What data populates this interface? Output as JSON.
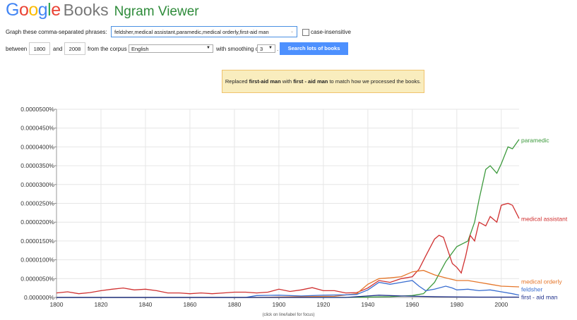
{
  "header": {
    "logo_letters": [
      {
        "ch": "G",
        "color": "#4285f4"
      },
      {
        "ch": "o",
        "color": "#ea4335"
      },
      {
        "ch": "o",
        "color": "#fbbc05"
      },
      {
        "ch": "g",
        "color": "#4285f4"
      },
      {
        "ch": "l",
        "color": "#34a853"
      },
      {
        "ch": "e",
        "color": "#ea4335"
      }
    ],
    "books": "Books",
    "title": "Ngram Viewer"
  },
  "query": {
    "label": "Graph these comma-separated phrases:",
    "phrases": "feldsher,medical assistant,paramedic,medical orderly,first-aid man",
    "case_insensitive_label": "case-insensitive",
    "between_label": "between",
    "start_year": "1800",
    "and_label": "and",
    "end_year": "2008",
    "corpus_label": "from the corpus",
    "corpus": "English",
    "smoothing_label": "with smoothing of",
    "smoothing": "3",
    "period": ".",
    "search_button": "Search lots of books"
  },
  "notice": {
    "prefix": "Replaced ",
    "original": "first-aid man",
    "middle": " with ",
    "replacement": "first - aid man",
    "suffix": " to match how we processed the books."
  },
  "footer": "(click on line/label for focus)",
  "chart_data": {
    "type": "line",
    "xlim": [
      1800,
      2008
    ],
    "ylim": [
      0,
      5e-07
    ],
    "x_ticks": [
      "1800",
      "1820",
      "1840",
      "1860",
      "1880",
      "1900",
      "1920",
      "1940",
      "1960",
      "1980",
      "2000"
    ],
    "y_ticks": [
      "0.000000%",
      "0.0000050%",
      "0.0000100%",
      "0.0000150%",
      "0.0000200%",
      "0.0000250%",
      "0.0000300%",
      "0.0000350%",
      "0.0000400%",
      "0.0000450%",
      "0.0000500%"
    ],
    "grid": true,
    "series": [
      {
        "name": "paramedic",
        "color": "#3d9a3d",
        "label_y": 4.18e-07,
        "points": [
          [
            1800,
            0
          ],
          [
            1930,
            0
          ],
          [
            1950,
            2e-09
          ],
          [
            1960,
            5e-09
          ],
          [
            1965,
            1e-08
          ],
          [
            1970,
            4e-08
          ],
          [
            1975,
            9.5e-08
          ],
          [
            1980,
            1.35e-07
          ],
          [
            1985,
            1.5e-07
          ],
          [
            1988,
            2e-07
          ],
          [
            1990,
            2.6e-07
          ],
          [
            1993,
            3.4e-07
          ],
          [
            1995,
            3.5e-07
          ],
          [
            1998,
            3.3e-07
          ],
          [
            2000,
            3.55e-07
          ],
          [
            2003,
            4e-07
          ],
          [
            2005,
            3.95e-07
          ],
          [
            2008,
            4.2e-07
          ]
        ]
      },
      {
        "name": "medical assistant",
        "color": "#d03030",
        "label_y": 2.09e-07,
        "points": [
          [
            1800,
            1.2e-08
          ],
          [
            1805,
            1.5e-08
          ],
          [
            1810,
            1e-08
          ],
          [
            1815,
            1.3e-08
          ],
          [
            1820,
            1.8e-08
          ],
          [
            1825,
            2.2e-08
          ],
          [
            1830,
            2.5e-08
          ],
          [
            1835,
            2e-08
          ],
          [
            1840,
            2.2e-08
          ],
          [
            1845,
            1.8e-08
          ],
          [
            1850,
            1.2e-08
          ],
          [
            1855,
            1.2e-08
          ],
          [
            1860,
            1e-08
          ],
          [
            1865,
            1.2e-08
          ],
          [
            1870,
            1e-08
          ],
          [
            1875,
            1.2e-08
          ],
          [
            1880,
            1.4e-08
          ],
          [
            1885,
            1.4e-08
          ],
          [
            1890,
            1.2e-08
          ],
          [
            1895,
            1.4e-08
          ],
          [
            1900,
            2.2e-08
          ],
          [
            1905,
            1.6e-08
          ],
          [
            1910,
            2e-08
          ],
          [
            1915,
            2.6e-08
          ],
          [
            1920,
            1.8e-08
          ],
          [
            1925,
            1.8e-08
          ],
          [
            1930,
            1.2e-08
          ],
          [
            1935,
            1.3e-08
          ],
          [
            1938,
            2e-08
          ],
          [
            1940,
            2.5e-08
          ],
          [
            1945,
            4.5e-08
          ],
          [
            1950,
            4e-08
          ],
          [
            1955,
            5e-08
          ],
          [
            1960,
            5.5e-08
          ],
          [
            1963,
            7.5e-08
          ],
          [
            1966,
            1.1e-07
          ],
          [
            1970,
            1.55e-07
          ],
          [
            1972,
            1.65e-07
          ],
          [
            1974,
            1.6e-07
          ],
          [
            1976,
            1.25e-07
          ],
          [
            1978,
            9e-08
          ],
          [
            1980,
            8e-08
          ],
          [
            1982,
            6.5e-08
          ],
          [
            1984,
            1.1e-07
          ],
          [
            1986,
            1.65e-07
          ],
          [
            1988,
            1.5e-07
          ],
          [
            1990,
            2e-07
          ],
          [
            1993,
            1.9e-07
          ],
          [
            1995,
            2.15e-07
          ],
          [
            1998,
            2e-07
          ],
          [
            2000,
            2.45e-07
          ],
          [
            2003,
            2.5e-07
          ],
          [
            2005,
            2.45e-07
          ],
          [
            2008,
            2.1e-07
          ]
        ]
      },
      {
        "name": "medical orderly",
        "color": "#e5762a",
        "label_y": 4.2e-08,
        "points": [
          [
            1800,
            0
          ],
          [
            1890,
            0
          ],
          [
            1910,
            2e-09
          ],
          [
            1925,
            3e-09
          ],
          [
            1935,
            1e-08
          ],
          [
            1940,
            3.5e-08
          ],
          [
            1945,
            5e-08
          ],
          [
            1950,
            5.2e-08
          ],
          [
            1955,
            5.5e-08
          ],
          [
            1960,
            6.8e-08
          ],
          [
            1965,
            7.2e-08
          ],
          [
            1970,
            6e-08
          ],
          [
            1975,
            5.2e-08
          ],
          [
            1980,
            4.5e-08
          ],
          [
            1985,
            4.5e-08
          ],
          [
            1990,
            4e-08
          ],
          [
            1995,
            3.5e-08
          ],
          [
            2000,
            3e-08
          ],
          [
            2008,
            2.8e-08
          ]
        ]
      },
      {
        "name": "feldsher",
        "color": "#3a6ed0",
        "label_y": 2.2e-08,
        "points": [
          [
            1800,
            0
          ],
          [
            1885,
            0
          ],
          [
            1890,
            5e-09
          ],
          [
            1900,
            6e-09
          ],
          [
            1910,
            4e-09
          ],
          [
            1920,
            6e-09
          ],
          [
            1930,
            7e-09
          ],
          [
            1935,
            8e-09
          ],
          [
            1940,
            2e-08
          ],
          [
            1945,
            4e-08
          ],
          [
            1950,
            3.5e-08
          ],
          [
            1955,
            4e-08
          ],
          [
            1960,
            4.5e-08
          ],
          [
            1963,
            3e-08
          ],
          [
            1966,
            1.8e-08
          ],
          [
            1970,
            2.2e-08
          ],
          [
            1975,
            3e-08
          ],
          [
            1978,
            2.5e-08
          ],
          [
            1980,
            2e-08
          ],
          [
            1985,
            2.2e-08
          ],
          [
            1990,
            1.8e-08
          ],
          [
            1995,
            2e-08
          ],
          [
            2000,
            1.5e-08
          ],
          [
            2005,
            1e-08
          ],
          [
            2008,
            6e-09
          ]
        ]
      },
      {
        "name": "first - aid man",
        "color": "#1e2f8a",
        "label_y": 1e-09,
        "points": [
          [
            1800,
            0
          ],
          [
            1930,
            0
          ],
          [
            1940,
            4e-09
          ],
          [
            1945,
            6e-09
          ],
          [
            1955,
            4e-09
          ],
          [
            1970,
            2e-09
          ],
          [
            1990,
            1e-09
          ],
          [
            2008,
            1e-09
          ]
        ]
      }
    ]
  }
}
